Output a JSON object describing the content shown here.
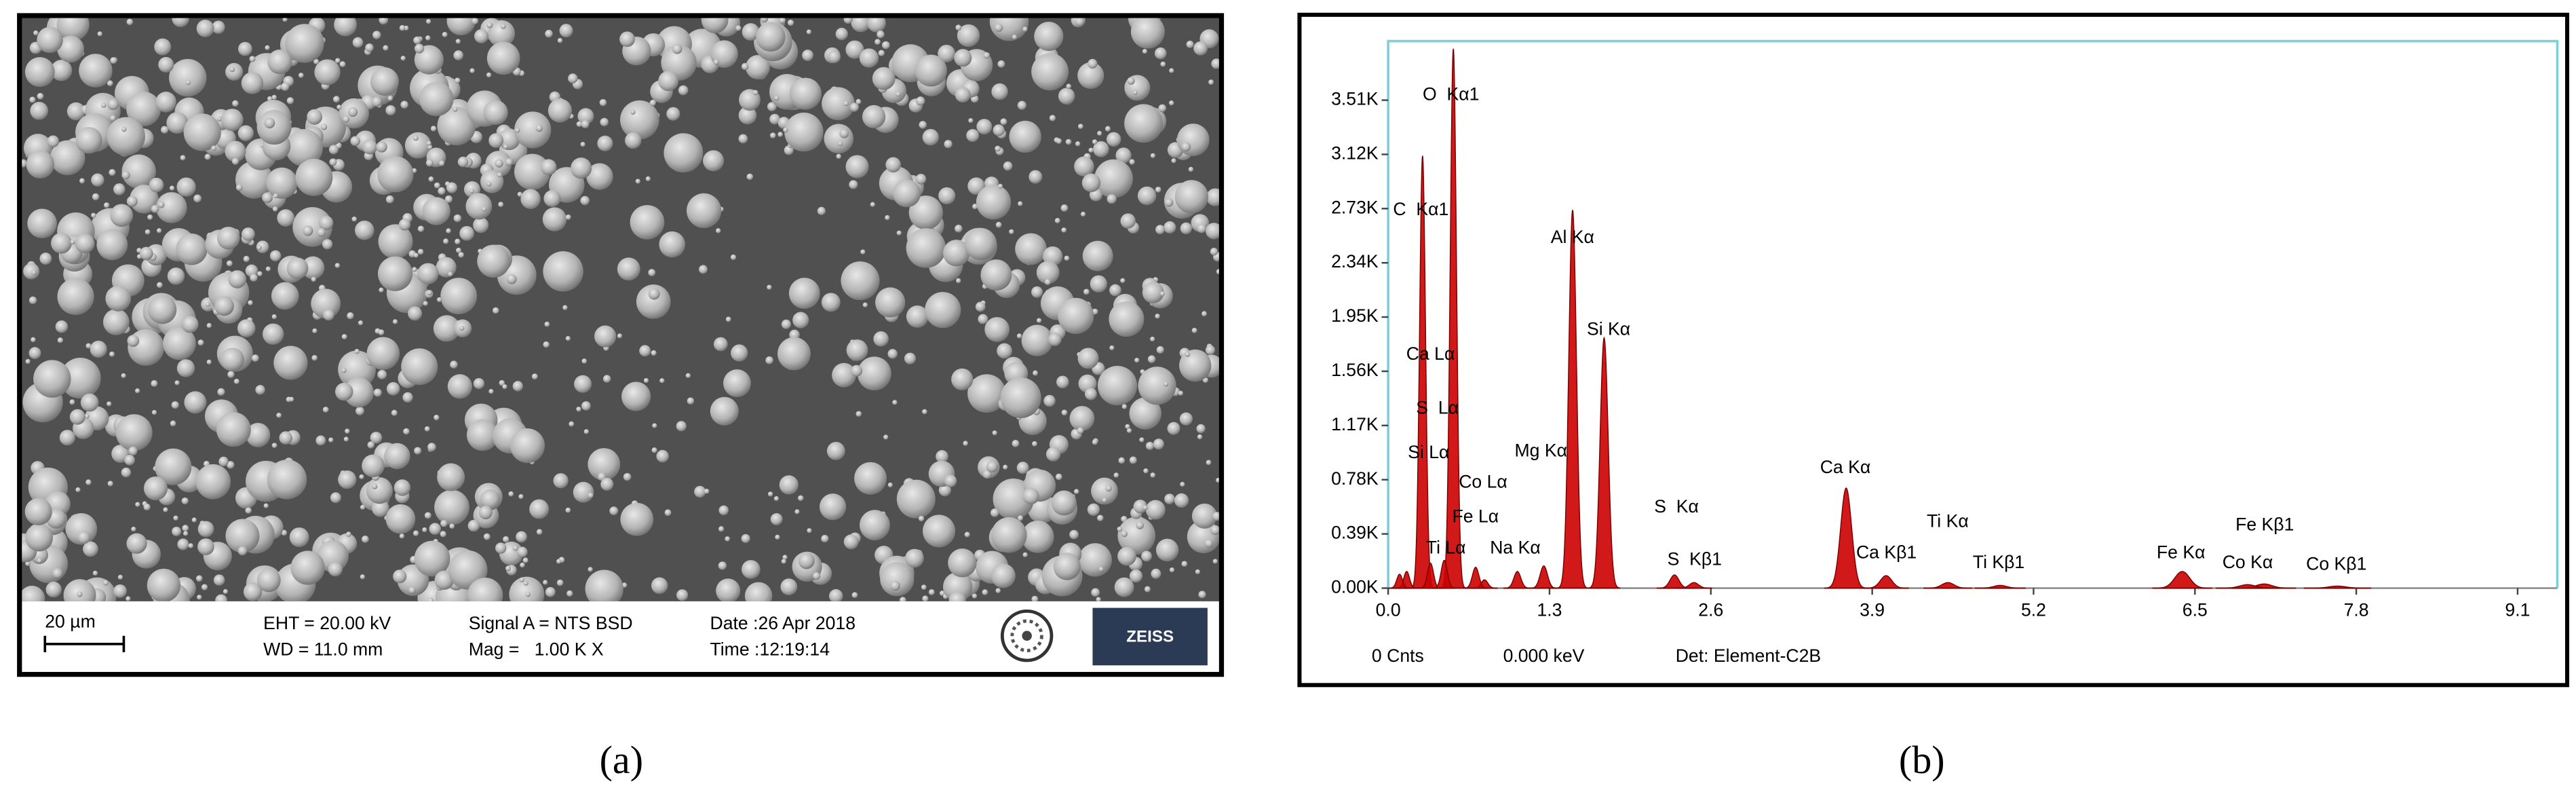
{
  "sem_image": {
    "scale_bar": "20 µm",
    "eht": "EHT = 20.00 kV",
    "wd": "WD = 11.0 mm",
    "signal": "Signal A = NTS BSD",
    "mag": "Mag =   1.00 K X",
    "date": "Date :26 Apr 2018",
    "time": "Time :12:19:14",
    "brand": "ZEISS"
  },
  "chart_data": {
    "type": "spectrum",
    "color": "#cc0000",
    "xlim": [
      0,
      9.42
    ],
    "ylim": [
      0,
      3935
    ],
    "xticks": [
      {
        "value": 0,
        "label": "0.0"
      },
      1.3,
      2.6,
      3.9,
      5.2,
      6.5,
      7.8,
      9.1
    ],
    "yticks": [
      {
        "value": 0,
        "label": "0.00K"
      },
      {
        "value": 390,
        "label": "0.39K"
      },
      {
        "value": 780,
        "label": "0.78K"
      },
      {
        "value": 1170,
        "label": "1.17K"
      },
      {
        "value": 1560,
        "label": "1.56K"
      },
      {
        "value": 1950,
        "label": "1.95K"
      },
      {
        "value": 2340,
        "label": "2.34K"
      },
      {
        "value": 2730,
        "label": "2.73K"
      },
      {
        "value": 3120,
        "label": "3.12K"
      },
      {
        "value": 3510,
        "label": "3.51K"
      }
    ],
    "peaks": [
      {
        "label": "O  Kα1",
        "energy": 0.525,
        "counts": 3880
      },
      {
        "label": "C  Kα1",
        "energy": 0.277,
        "counts": 3110
      },
      {
        "label": "Ca Lα",
        "energy": 0.341,
        "counts": 180
      },
      {
        "label": "S  Lα",
        "energy": 0.149,
        "counts": 120
      },
      {
        "label": "Si Lα",
        "energy": 0.092,
        "counts": 100
      },
      {
        "label": "Co Lα",
        "energy": 0.776,
        "counts": 60
      },
      {
        "label": "Fe Lα",
        "energy": 0.705,
        "counts": 150
      },
      {
        "label": "Ti Lα",
        "energy": 0.452,
        "counts": 200
      },
      {
        "label": "Na Kα",
        "energy": 1.041,
        "counts": 120
      },
      {
        "label": "Mg Kα",
        "energy": 1.254,
        "counts": 160
      },
      {
        "label": "Al Kα",
        "energy": 1.486,
        "counts": 2720
      },
      {
        "label": "Si Kα",
        "energy": 1.74,
        "counts": 1800
      },
      {
        "label": "S  Kα",
        "energy": 2.307,
        "counts": 95
      },
      {
        "label": "S  Kβ1",
        "energy": 2.464,
        "counts": 40
      },
      {
        "label": "Ca Kα",
        "energy": 3.69,
        "counts": 720
      },
      {
        "label": "Ca Kβ1",
        "energy": 4.012,
        "counts": 90
      },
      {
        "label": "Ti Kα",
        "energy": 4.51,
        "counts": 40
      },
      {
        "label": "Ti Kβ1",
        "energy": 4.931,
        "counts": 20
      },
      {
        "label": "Fe Kα",
        "energy": 6.398,
        "counts": 120
      },
      {
        "label": "Fe Kβ1",
        "energy": 7.057,
        "counts": 30
      },
      {
        "label": "Co Kα",
        "energy": 6.924,
        "counts": 25
      },
      {
        "label": "Co Kβ1",
        "energy": 7.649,
        "counts": 15
      }
    ],
    "footer": [
      "0 Cnts",
      "0.000 keV",
      "Det: Element-C2B"
    ]
  },
  "captions": [
    "(a)",
    "(b)"
  ]
}
